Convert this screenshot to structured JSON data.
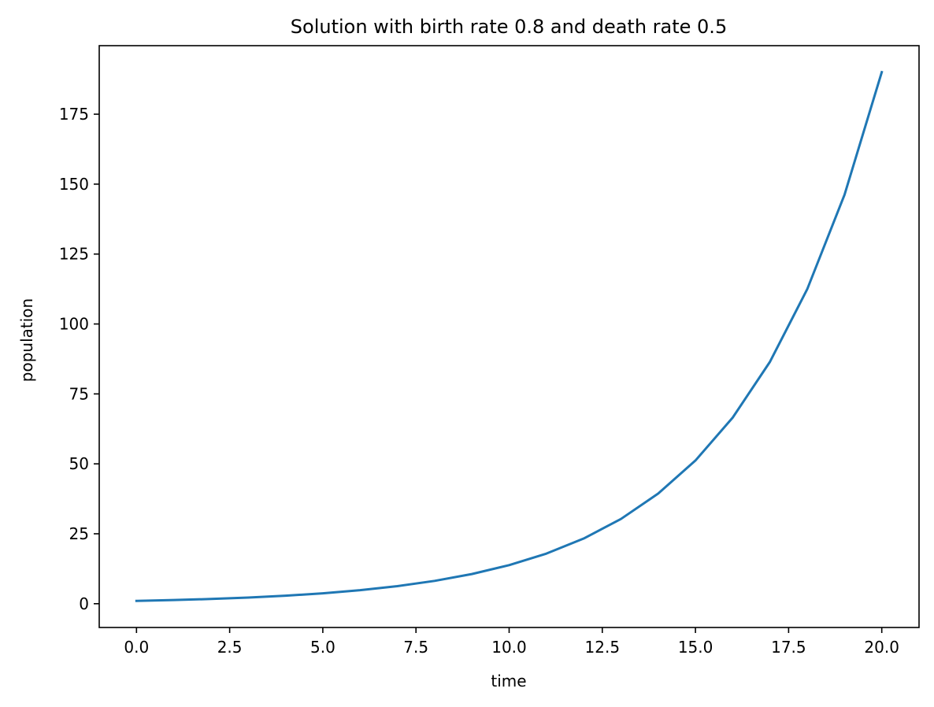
{
  "chart_data": {
    "type": "line",
    "title": "Solution with birth rate 0.8 and death rate 0.5",
    "xlabel": "time",
    "ylabel": "population",
    "xlim": [
      -1.0,
      21.0
    ],
    "ylim": [
      -8.5,
      199.5
    ],
    "xticks": [
      0.0,
      2.5,
      5.0,
      7.5,
      10.0,
      12.5,
      15.0,
      17.5,
      20.0
    ],
    "xtick_labels": [
      "0.0",
      "2.5",
      "5.0",
      "7.5",
      "10.0",
      "12.5",
      "15.0",
      "17.5",
      "20.0"
    ],
    "yticks": [
      0,
      25,
      50,
      75,
      100,
      125,
      150,
      175
    ],
    "ytick_labels": [
      "0",
      "25",
      "50",
      "75",
      "100",
      "125",
      "150",
      "175"
    ],
    "grid": false,
    "series": [
      {
        "color": "#1f77b4",
        "x": [
          0,
          1,
          2,
          3,
          4,
          5,
          6,
          7,
          8,
          9,
          10,
          11,
          12,
          13,
          14,
          15,
          16,
          17,
          18,
          19,
          20
        ],
        "y": [
          1.0,
          1.3,
          1.69,
          2.2,
          2.86,
          3.71,
          4.83,
          6.27,
          8.16,
          10.6,
          13.79,
          17.92,
          23.3,
          30.29,
          39.37,
          51.19,
          66.54,
          86.5,
          112.46,
          146.19,
          190.05
        ]
      }
    ]
  }
}
